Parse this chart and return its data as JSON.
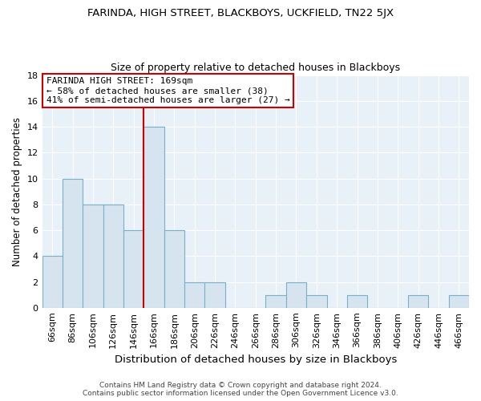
{
  "title": "FARINDA, HIGH STREET, BLACKBOYS, UCKFIELD, TN22 5JX",
  "subtitle": "Size of property relative to detached houses in Blackboys",
  "xlabel": "Distribution of detached houses by size in Blackboys",
  "ylabel": "Number of detached properties",
  "footer_line1": "Contains HM Land Registry data © Crown copyright and database right 2024.",
  "footer_line2": "Contains public sector information licensed under the Open Government Licence v3.0.",
  "categories": [
    "66sqm",
    "86sqm",
    "106sqm",
    "126sqm",
    "146sqm",
    "166sqm",
    "186sqm",
    "206sqm",
    "226sqm",
    "246sqm",
    "266sqm",
    "286sqm",
    "306sqm",
    "326sqm",
    "346sqm",
    "366sqm",
    "386sqm",
    "406sqm",
    "426sqm",
    "446sqm",
    "466sqm"
  ],
  "values": [
    4,
    10,
    8,
    8,
    6,
    14,
    6,
    2,
    2,
    0,
    0,
    1,
    2,
    1,
    0,
    1,
    0,
    0,
    1,
    0,
    1
  ],
  "bar_color": "#d6e4f0",
  "bar_edge_color": "#7aafc8",
  "vline_color": "#cc0000",
  "annotation_title": "FARINDA HIGH STREET: 169sqm",
  "annotation_line2": "← 58% of detached houses are smaller (38)",
  "annotation_line3": "41% of semi-detached houses are larger (27) →",
  "annotation_box_color": "#ffffff",
  "annotation_box_edge": "#cc0000",
  "ylim": [
    0,
    18
  ],
  "yticks": [
    0,
    2,
    4,
    6,
    8,
    10,
    12,
    14,
    16,
    18
  ],
  "background_color": "#ffffff",
  "plot_background": "#e8f0f8",
  "grid_color": "#ffffff",
  "title_fontsize": 9.5,
  "subtitle_fontsize": 9,
  "ylabel_fontsize": 8.5,
  "xlabel_fontsize": 9.5,
  "tick_fontsize": 8,
  "footer_fontsize": 6.5
}
